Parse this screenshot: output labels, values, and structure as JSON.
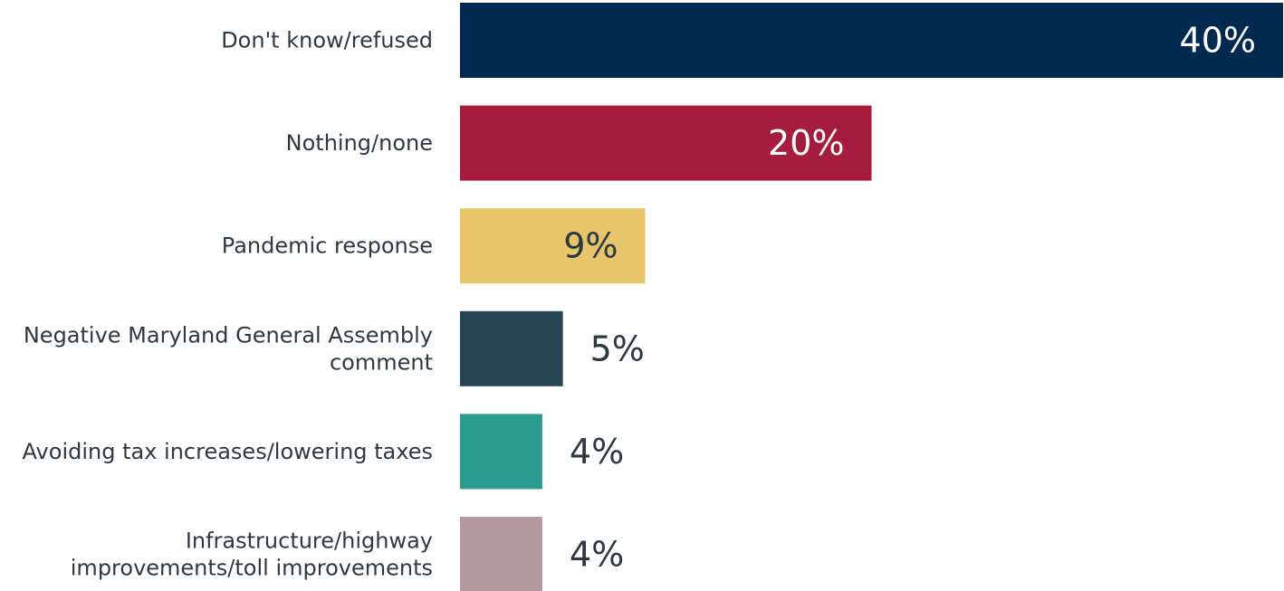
{
  "chart_data": {
    "type": "bar",
    "orientation": "horizontal",
    "categories": [
      [
        "Don't know/refused"
      ],
      [
        "Nothing/none"
      ],
      [
        "Pandemic response"
      ],
      [
        "Negative Maryland General Assembly",
        "comment"
      ],
      [
        "Avoiding tax increases/lowering taxes"
      ],
      [
        "Infrastructure/highway",
        "improvements/toll improvements"
      ]
    ],
    "values": [
      40,
      20,
      9,
      5,
      4,
      4
    ],
    "value_labels": [
      "40%",
      "20%",
      "9%",
      "5%",
      "4%",
      "4%"
    ],
    "colors": [
      "#022a50",
      "#a51c3c",
      "#e8c56b",
      "#264653",
      "#2a9d8f",
      "#b39aa0"
    ],
    "value_label_inside": [
      true,
      true,
      true,
      false,
      false,
      false
    ],
    "value_label_colors": [
      "#ffffff",
      "#ffffff",
      "#2b3a42",
      "#2b3a42",
      "#2b3a42",
      "#2b3a42"
    ],
    "xlim": [
      0,
      40
    ],
    "grid": false,
    "legend": "none",
    "title": "",
    "xlabel": "",
    "ylabel": ""
  }
}
